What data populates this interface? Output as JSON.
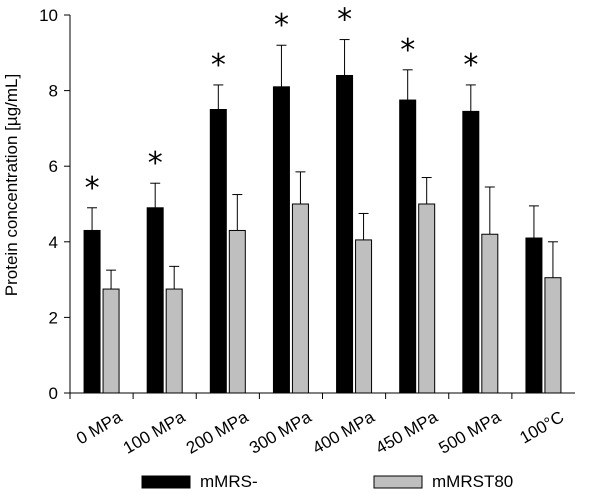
{
  "chart_data": {
    "type": "bar",
    "ylabel": "Protein concentration [µg/mL]",
    "ylim": [
      0,
      10
    ],
    "yticks": [
      "0",
      "2",
      "4",
      "6",
      "8",
      "10"
    ],
    "categories": [
      "0 MPa",
      "100 MPa",
      "200 MPa",
      "300 MPa",
      "400 MPa",
      "450 MPa",
      "500 MPa",
      "100°C"
    ],
    "series": [
      {
        "name": "mMRS-",
        "color": "#000000",
        "values": [
          4.3,
          4.9,
          7.5,
          8.1,
          8.4,
          7.75,
          7.45,
          4.1
        ],
        "errors": [
          0.6,
          0.65,
          0.65,
          1.1,
          0.95,
          0.8,
          0.7,
          0.85
        ]
      },
      {
        "name": "mMRST80",
        "color": "#bfbfbf",
        "values": [
          2.75,
          2.75,
          4.3,
          5.0,
          4.05,
          5.0,
          4.2,
          3.05
        ],
        "errors": [
          0.5,
          0.6,
          0.95,
          0.85,
          0.7,
          0.7,
          1.25,
          0.95
        ]
      }
    ],
    "significance_marker": "*",
    "significant": [
      true,
      true,
      true,
      true,
      true,
      true,
      true,
      false
    ],
    "grid": false,
    "legend_position": "bottom"
  }
}
